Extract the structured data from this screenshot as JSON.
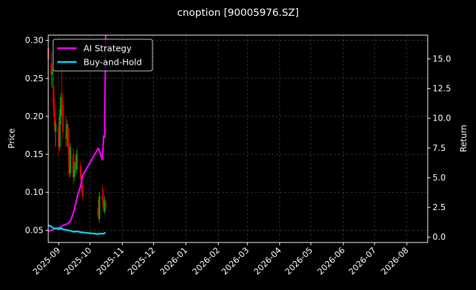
{
  "chart_data": {
    "type": "line",
    "title": "cnoption [90005976.SZ]",
    "xlabel": "",
    "ylabel": "Price",
    "y2label": "Return",
    "x_ticks": [
      "2025-09",
      "2025-10",
      "2025-11",
      "2025-12",
      "2026-01",
      "2026-02",
      "2026-03",
      "2026-04",
      "2026-05",
      "2026-06",
      "2026-07",
      "2026-08"
    ],
    "xlim": [
      "2025-08-22",
      "2026-08-21"
    ],
    "ylim": [
      0.034,
      0.307
    ],
    "y_ticks": [
      0.05,
      0.1,
      0.15,
      0.2,
      0.25,
      0.3
    ],
    "y2lim": [
      -0.45,
      17.0
    ],
    "y2_ticks": [
      0.0,
      2.5,
      5.0,
      7.5,
      10.0,
      12.5,
      15.0
    ],
    "grid": true,
    "legend": {
      "position": "top-left",
      "entries": [
        "AI Strategy",
        "Buy-and-Hold"
      ]
    },
    "colors": {
      "background": "#000000",
      "ai_strategy": "#ff00ff",
      "buy_and_hold": "#00e5ff",
      "candle_up": "#00aa00",
      "candle_down": "#dd0000",
      "grid": "#555555",
      "text": "#ffffff"
    },
    "candles": [
      {
        "date": "2025-08-22",
        "o": 0.29,
        "h": 0.3,
        "l": 0.265,
        "c": 0.275
      },
      {
        "date": "2025-08-25",
        "o": 0.27,
        "h": 0.285,
        "l": 0.24,
        "c": 0.255
      },
      {
        "date": "2025-08-26",
        "o": 0.255,
        "h": 0.262,
        "l": 0.238,
        "c": 0.26
      },
      {
        "date": "2025-08-27",
        "o": 0.24,
        "h": 0.25,
        "l": 0.2,
        "c": 0.21
      },
      {
        "date": "2025-08-28",
        "o": 0.21,
        "h": 0.224,
        "l": 0.18,
        "c": 0.188
      },
      {
        "date": "2025-08-29",
        "o": 0.18,
        "h": 0.195,
        "l": 0.16,
        "c": 0.19
      },
      {
        "date": "2025-09-01",
        "o": 0.185,
        "h": 0.193,
        "l": 0.15,
        "c": 0.16
      },
      {
        "date": "2025-09-02",
        "o": 0.16,
        "h": 0.21,
        "l": 0.155,
        "c": 0.2
      },
      {
        "date": "2025-09-03",
        "o": 0.2,
        "h": 0.23,
        "l": 0.19,
        "c": 0.225
      },
      {
        "date": "2025-09-04",
        "o": 0.22,
        "h": 0.27,
        "l": 0.2,
        "c": 0.215
      },
      {
        "date": "2025-09-05",
        "o": 0.215,
        "h": 0.23,
        "l": 0.17,
        "c": 0.18
      },
      {
        "date": "2025-09-08",
        "o": 0.18,
        "h": 0.2,
        "l": 0.16,
        "c": 0.17
      },
      {
        "date": "2025-09-09",
        "o": 0.17,
        "h": 0.195,
        "l": 0.16,
        "c": 0.19
      },
      {
        "date": "2025-09-10",
        "o": 0.185,
        "h": 0.19,
        "l": 0.15,
        "c": 0.16
      },
      {
        "date": "2025-09-11",
        "o": 0.16,
        "h": 0.165,
        "l": 0.12,
        "c": 0.125
      },
      {
        "date": "2025-09-12",
        "o": 0.125,
        "h": 0.165,
        "l": 0.12,
        "c": 0.16
      },
      {
        "date": "2025-09-15",
        "o": 0.15,
        "h": 0.158,
        "l": 0.11,
        "c": 0.12
      },
      {
        "date": "2025-09-16",
        "o": 0.12,
        "h": 0.14,
        "l": 0.115,
        "c": 0.135
      },
      {
        "date": "2025-09-17",
        "o": 0.14,
        "h": 0.145,
        "l": 0.125,
        "c": 0.13
      },
      {
        "date": "2025-09-18",
        "o": 0.13,
        "h": 0.155,
        "l": 0.125,
        "c": 0.15
      },
      {
        "date": "2025-09-19",
        "o": 0.145,
        "h": 0.16,
        "l": 0.13,
        "c": 0.14
      },
      {
        "date": "2025-09-22",
        "o": 0.135,
        "h": 0.14,
        "l": 0.115,
        "c": 0.118
      },
      {
        "date": "2025-09-23",
        "o": 0.12,
        "h": 0.125,
        "l": 0.1,
        "c": 0.105
      },
      {
        "date": "2025-09-24",
        "o": 0.105,
        "h": 0.11,
        "l": 0.09,
        "c": 0.095
      },
      {
        "date": "2025-10-09",
        "o": 0.08,
        "h": 0.09,
        "l": 0.065,
        "c": 0.07
      },
      {
        "date": "2025-10-10",
        "o": 0.065,
        "h": 0.1,
        "l": 0.06,
        "c": 0.095
      },
      {
        "date": "2025-10-13",
        "o": 0.095,
        "h": 0.11,
        "l": 0.085,
        "c": 0.09
      },
      {
        "date": "2025-10-14",
        "o": 0.09,
        "h": 0.105,
        "l": 0.075,
        "c": 0.08
      },
      {
        "date": "2025-10-15",
        "o": 0.075,
        "h": 0.095,
        "l": 0.072,
        "c": 0.088
      },
      {
        "date": "2025-10-16",
        "o": 0.085,
        "h": 0.09,
        "l": 0.075,
        "c": 0.08
      }
    ],
    "series": [
      {
        "name": "AI Strategy",
        "axis": "right",
        "x": [
          "2025-08-22",
          "2025-08-26",
          "2025-08-29",
          "2025-09-02",
          "2025-09-05",
          "2025-09-09",
          "2025-09-12",
          "2025-09-16",
          "2025-09-19",
          "2025-09-22",
          "2025-09-24",
          "2025-10-09",
          "2025-10-13",
          "2025-10-14",
          "2025-10-15",
          "2025-10-16"
        ],
        "values": [
          0.5,
          0.6,
          0.75,
          0.8,
          1.0,
          1.1,
          1.3,
          2.3,
          3.5,
          4.3,
          5.2,
          7.5,
          6.5,
          8.5,
          8.4,
          17.0
        ]
      },
      {
        "name": "Buy-and-Hold",
        "axis": "right",
        "x": [
          "2025-08-22",
          "2025-08-25",
          "2025-08-27",
          "2025-08-29",
          "2025-09-02",
          "2025-09-04",
          "2025-09-05",
          "2025-09-09",
          "2025-09-12",
          "2025-09-15",
          "2025-09-17",
          "2025-09-19",
          "2025-09-22",
          "2025-09-24",
          "2025-10-09",
          "2025-10-10",
          "2025-10-13",
          "2025-10-14",
          "2025-10-15",
          "2025-10-16"
        ],
        "values": [
          1.0,
          0.9,
          0.75,
          0.72,
          0.68,
          0.75,
          0.65,
          0.6,
          0.55,
          0.45,
          0.48,
          0.47,
          0.42,
          0.4,
          0.25,
          0.3,
          0.3,
          0.28,
          0.35,
          0.35
        ]
      }
    ]
  }
}
